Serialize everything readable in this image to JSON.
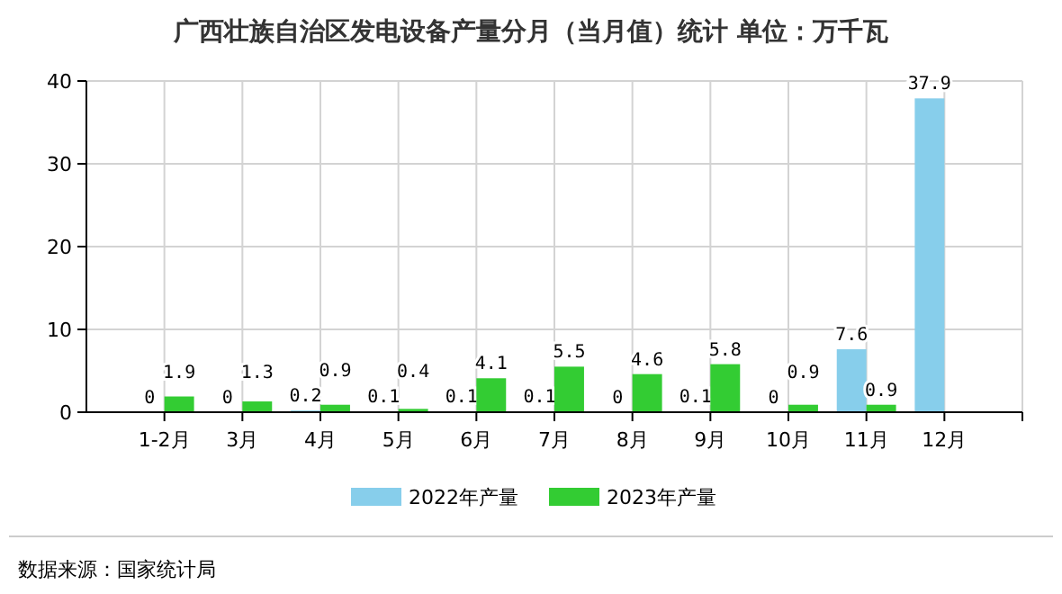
{
  "chart_data": {
    "type": "bar",
    "title": "广西壮族自治区发电设备产量分月（当月值）统计  单位：万千瓦",
    "categories": [
      "1-2月",
      "3月",
      "4月",
      "5月",
      "6月",
      "7月",
      "8月",
      "9月",
      "10月",
      "11月",
      "12月"
    ],
    "series": [
      {
        "name": "2022年产量",
        "color": "#87ceeb",
        "values": [
          0,
          0,
          0.2,
          0.1,
          0.1,
          0.1,
          0,
          0.1,
          0,
          7.6,
          37.9
        ]
      },
      {
        "name": "2023年产量",
        "color": "#33cc33",
        "values": [
          1.9,
          1.3,
          0.9,
          0.4,
          4.1,
          5.5,
          4.6,
          5.8,
          0.9,
          0.9,
          null
        ]
      }
    ],
    "ylim": [
      0,
      40
    ],
    "yticks": [
      0,
      10,
      20,
      30,
      40
    ],
    "grid": true,
    "legend": "bottom",
    "data_labels": true,
    "annotations": [
      "数据来源：国家统计局"
    ]
  }
}
